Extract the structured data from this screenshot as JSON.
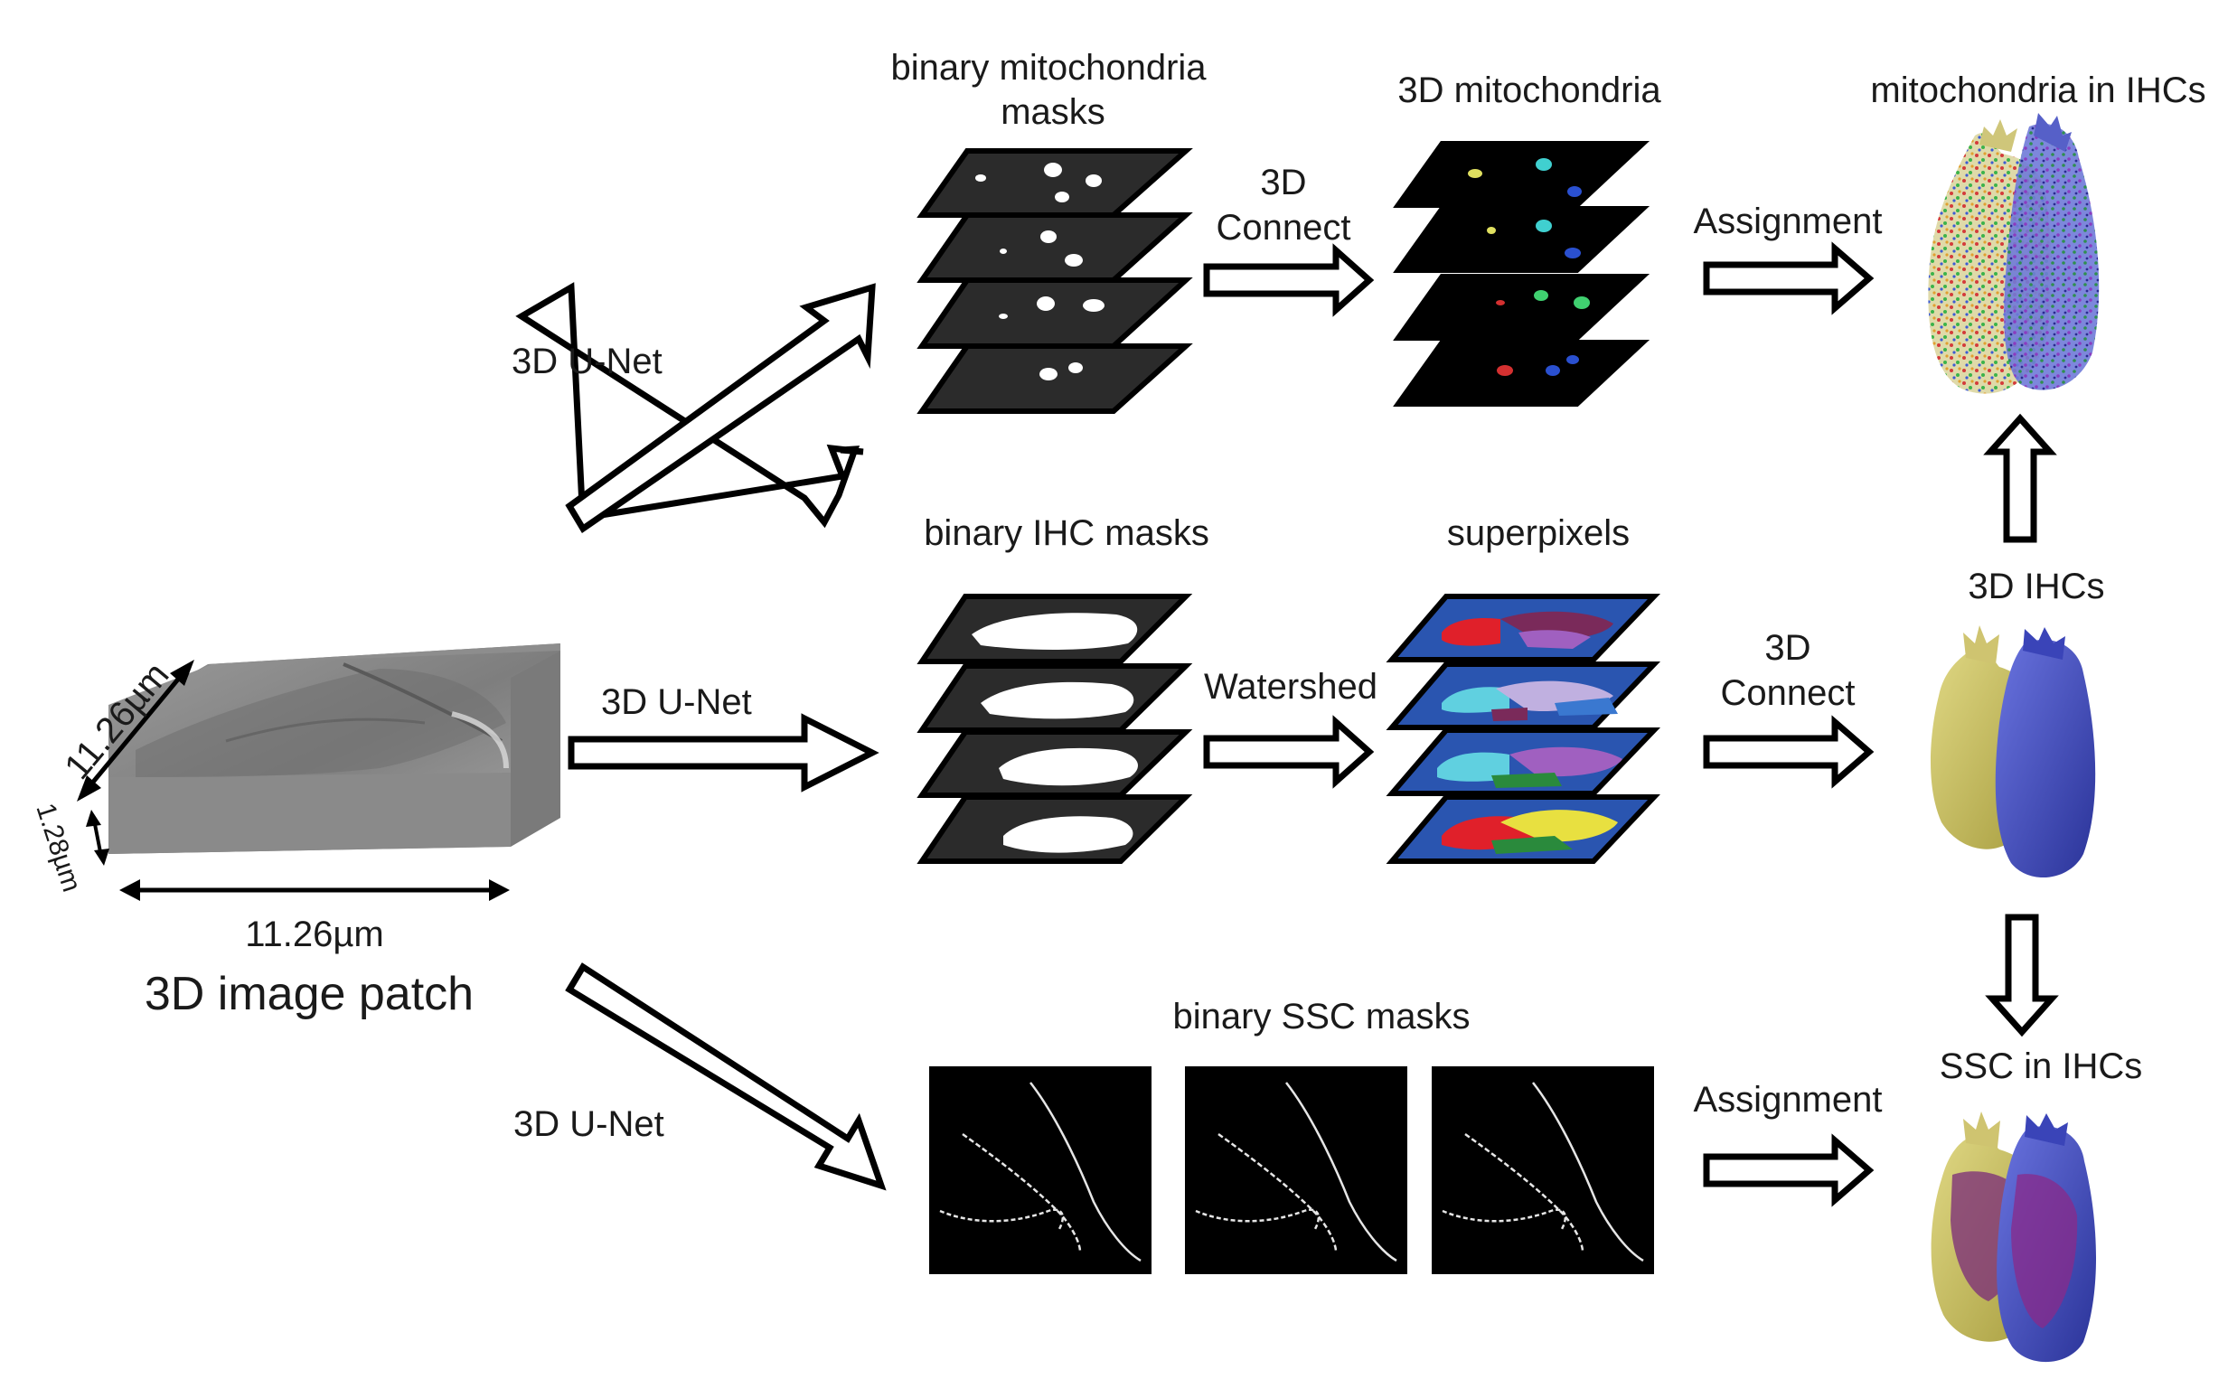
{
  "input": {
    "caption": "3D image patch",
    "dim_width": "11.26µm",
    "dim_depth": "11.26µm",
    "dim_height": "1.28µm"
  },
  "edges": {
    "unet_top": "3D U-Net",
    "unet_mid": "3D U-Net",
    "unet_bottom": "3D U-Net",
    "connect_top_line1": "3D",
    "connect_top_line2": "Connect",
    "watershed": "Watershed",
    "assignment_top": "Assignment",
    "connect_mid_line1": "3D",
    "connect_mid_line2": "Connect",
    "assignment_bottom": "Assignment"
  },
  "nodes": {
    "mito_masks_line1": "binary mitochondria",
    "mito_masks_line2": "masks",
    "mito_3d": "3D mitochondria",
    "mito_in_ihc": "mitochondria in IHCs",
    "ihc_masks": "binary IHC masks",
    "superpixels": "superpixels",
    "ihc_3d": "3D IHCs",
    "ssc_masks": "binary SSC masks",
    "ssc_in_ihc": "SSC in IHCs"
  },
  "colors": {
    "cell_yellow": "#c9c26a",
    "cell_blue": "#4a55c0",
    "superpixel_bg": "#2a55b0",
    "slice_dark": "#2b2b2b"
  }
}
